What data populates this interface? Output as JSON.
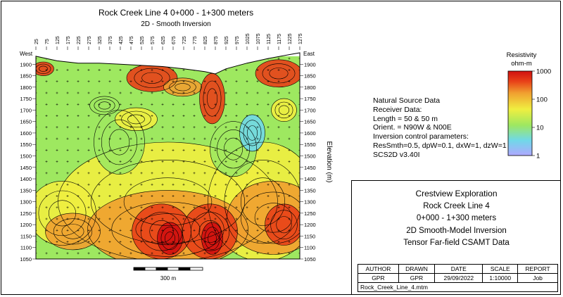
{
  "chart_data": {
    "type": "heatmap",
    "title": "Rock Creek Line 4 0+000 - 1+300 meters",
    "subtitle": "2D - Smooth Inversion",
    "left_label": "West",
    "right_label": "East",
    "ylabel": "Elevation (m)",
    "x_ticks": [
      "25",
      "75",
      "125",
      "175",
      "225",
      "275",
      "325",
      "375",
      "425",
      "475",
      "525",
      "575",
      "625",
      "675",
      "725",
      "775",
      "825",
      "875",
      "925",
      "975",
      "1025",
      "1075",
      "1125",
      "1175",
      "1225",
      "1275"
    ],
    "x_range": [
      25,
      1275
    ],
    "y_ticks": [
      "1900",
      "1850",
      "1800",
      "1750",
      "1700",
      "1650",
      "1600",
      "1550",
      "1500",
      "1450",
      "1400",
      "1350",
      "1300",
      "1250",
      "1200",
      "1150",
      "1100",
      "1050"
    ],
    "y_range": [
      1050,
      1950
    ],
    "scale_bar_label": "300 m",
    "legend": {
      "title_line1": "Resistivity",
      "title_line2": "ohm-m",
      "labels": [
        "1000",
        "100",
        "10",
        "1"
      ],
      "scale": "log",
      "range": [
        1,
        1000
      ]
    },
    "colors": [
      "#b0a8ff",
      "#70d8e8",
      "#9ee860",
      "#f0ee40",
      "#f0a030",
      "#e84018",
      "#d01010"
    ]
  },
  "info": {
    "lines": [
      "Natural Source Data",
      "Receiver Data:",
      "Length = 50 & 50 m",
      "Orient. = N90W & N00E",
      "Inversion control parameters:",
      "ResSmth=0.5, dpW=0.1, dxW=1, dzW=1",
      "SCS2D v3.40I"
    ]
  },
  "title_block": {
    "company": "Crestview Exploration",
    "line2": "Rock Creek Line 4",
    "line3": "0+000 - 1+300 meters",
    "line4": "2D Smooth-Model Inversion",
    "line5": "Tensor Far-field CSAMT Data",
    "headers": [
      "AUTHOR",
      "DRAWN",
      "DATE",
      "SCALE",
      "REPORT"
    ],
    "values": [
      "GPR",
      "GPR",
      "29/09/2022",
      "1:10000",
      "Job"
    ],
    "filename": "Rock_Creek_Line_4.mtm"
  }
}
